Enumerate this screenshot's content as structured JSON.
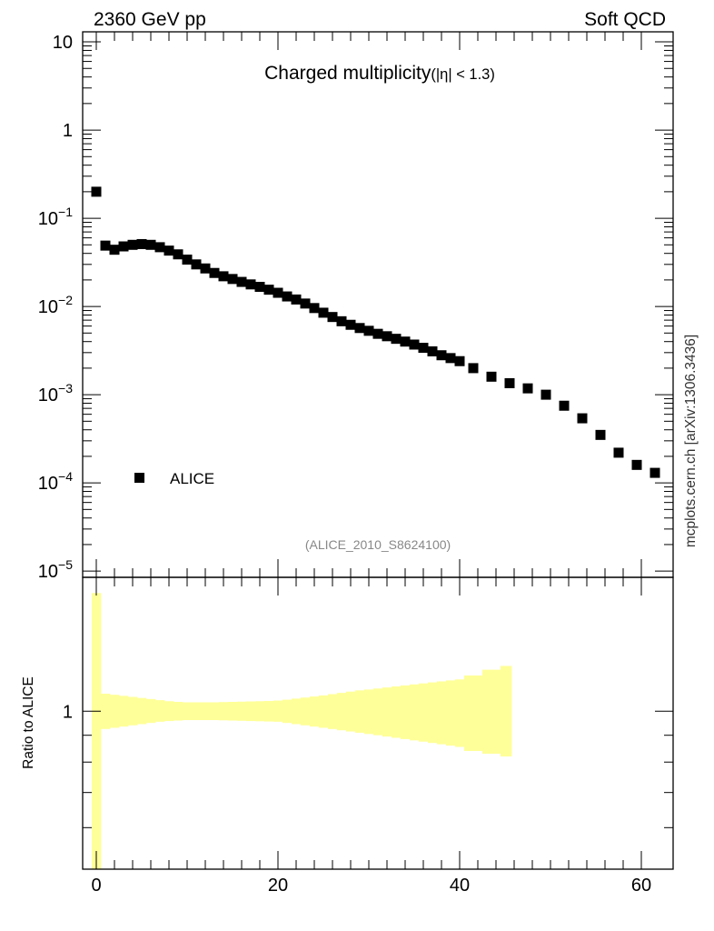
{
  "header": {
    "left": "2360 GeV pp",
    "right": "Soft QCD"
  },
  "side_label": "mcplots.cern.ch [arXiv:1306.3436]",
  "chart_data": [
    {
      "type": "scatter",
      "title": "Charged multiplicity",
      "title_suffix": "(|η| < 1.3)",
      "watermark": "(ALICE_2010_S8624100)",
      "xlabel": "",
      "ylabel": "",
      "yscale": "log",
      "xlim": [
        -1.5,
        63.5
      ],
      "ylim": [
        8.5e-06,
        13
      ],
      "y_ticks": [
        {
          "value": 10,
          "mantissa": "10",
          "exp": ""
        },
        {
          "value": 1,
          "mantissa": "1",
          "exp": ""
        },
        {
          "value": 0.1,
          "mantissa": "10",
          "exp": "−1"
        },
        {
          "value": 0.01,
          "mantissa": "10",
          "exp": "−2"
        },
        {
          "value": 0.001,
          "mantissa": "10",
          "exp": "−3"
        },
        {
          "value": 0.0001,
          "mantissa": "10",
          "exp": "−4"
        },
        {
          "value": 1e-05,
          "mantissa": "10",
          "exp": "−5"
        }
      ],
      "legend": {
        "label": "ALICE",
        "placement": "lower-left",
        "marker": "square",
        "color": "#000000"
      },
      "series": [
        {
          "name": "ALICE",
          "color": "#000000",
          "marker": "square",
          "x": [
            0,
            1,
            2,
            3,
            4,
            5,
            6,
            7,
            8,
            9,
            10,
            11,
            12,
            13,
            14,
            15,
            16,
            17,
            18,
            19,
            20,
            21,
            22,
            23,
            24,
            25,
            26,
            27,
            28,
            29,
            30,
            31,
            32,
            33,
            34,
            35,
            36,
            37,
            38,
            39,
            40,
            41.5,
            43.5,
            45.5,
            47.5,
            49.5,
            51.5,
            53.5,
            55.5,
            57.5,
            59.5,
            61.5
          ],
          "y": [
            0.2,
            0.049,
            0.044,
            0.048,
            0.05,
            0.051,
            0.05,
            0.047,
            0.043,
            0.039,
            0.034,
            0.03,
            0.027,
            0.024,
            0.022,
            0.0205,
            0.019,
            0.0178,
            0.0167,
            0.0155,
            0.0143,
            0.013,
            0.012,
            0.0108,
            0.0096,
            0.0085,
            0.0076,
            0.0068,
            0.0062,
            0.0057,
            0.0053,
            0.0049,
            0.0046,
            0.0043,
            0.004,
            0.0037,
            0.0034,
            0.0031,
            0.0028,
            0.0026,
            0.0024,
            0.002,
            0.0016,
            0.00135,
            0.00118,
            0.001,
            0.00075,
            0.00054,
            0.00035,
            0.00022,
            0.00016,
            0.00013
          ]
        }
      ]
    },
    {
      "type": "area",
      "ylabel": "Ratio to ALICE",
      "yscale": "log",
      "xlim": [
        -1.5,
        63.5
      ],
      "ylim": [
        0.5,
        1.8
      ],
      "y_ticks": [
        {
          "value": 1,
          "label": "1"
        }
      ],
      "x_ticks": [
        {
          "value": 0,
          "label": "0"
        },
        {
          "value": 20,
          "label": "20"
        },
        {
          "value": 40,
          "label": "40"
        },
        {
          "value": 60,
          "label": "60"
        }
      ],
      "band_color": "#ffff99",
      "band": {
        "x": [
          -0.5,
          0.5,
          1.5,
          2.5,
          3.5,
          4.5,
          5.5,
          6.5,
          7.5,
          8.5,
          9.5,
          10.5,
          11.5,
          12.5,
          13.5,
          14.5,
          15.5,
          16.5,
          17.5,
          18.5,
          19.5,
          20.5,
          21.5,
          22.5,
          23.5,
          24.5,
          25.5,
          26.5,
          27.5,
          28.5,
          29.5,
          30.5,
          31.5,
          32.5,
          33.5,
          34.5,
          35.5,
          36.5,
          37.5,
          38.5,
          39.5,
          40.5,
          42.5,
          44.5
        ],
        "low": [
          0.5,
          0.925,
          0.93,
          0.935,
          0.94,
          0.945,
          0.95,
          0.955,
          0.958,
          0.96,
          0.962,
          0.962,
          0.962,
          0.962,
          0.961,
          0.96,
          0.959,
          0.958,
          0.957,
          0.956,
          0.955,
          0.95,
          0.945,
          0.94,
          0.935,
          0.93,
          0.925,
          0.92,
          0.915,
          0.91,
          0.905,
          0.9,
          0.895,
          0.89,
          0.885,
          0.88,
          0.875,
          0.87,
          0.865,
          0.86,
          0.855,
          0.84,
          0.83,
          0.82
        ],
        "high": [
          1.68,
          1.08,
          1.075,
          1.07,
          1.065,
          1.06,
          1.055,
          1.05,
          1.045,
          1.042,
          1.04,
          1.04,
          1.04,
          1.04,
          1.041,
          1.042,
          1.043,
          1.044,
          1.045,
          1.046,
          1.048,
          1.052,
          1.057,
          1.062,
          1.067,
          1.072,
          1.078,
          1.084,
          1.09,
          1.096,
          1.1,
          1.105,
          1.11,
          1.115,
          1.12,
          1.125,
          1.13,
          1.135,
          1.14,
          1.145,
          1.15,
          1.17,
          1.2,
          1.22
        ]
      }
    }
  ]
}
